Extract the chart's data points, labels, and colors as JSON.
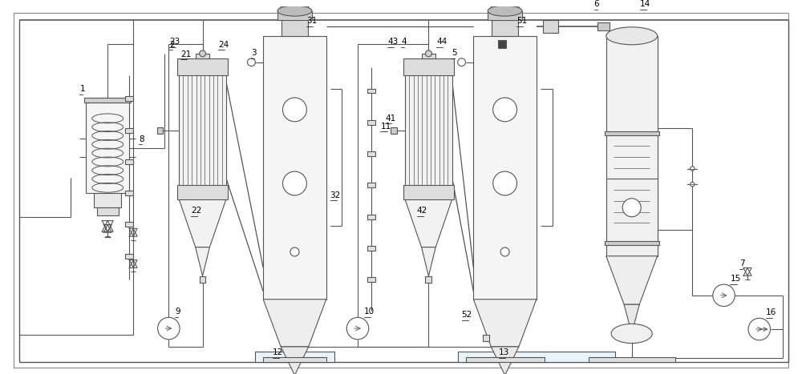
{
  "bg_color": "#ffffff",
  "lc": "#555555",
  "lw": 0.8,
  "fig_w": 10.0,
  "fig_h": 4.67,
  "dpi": 100
}
